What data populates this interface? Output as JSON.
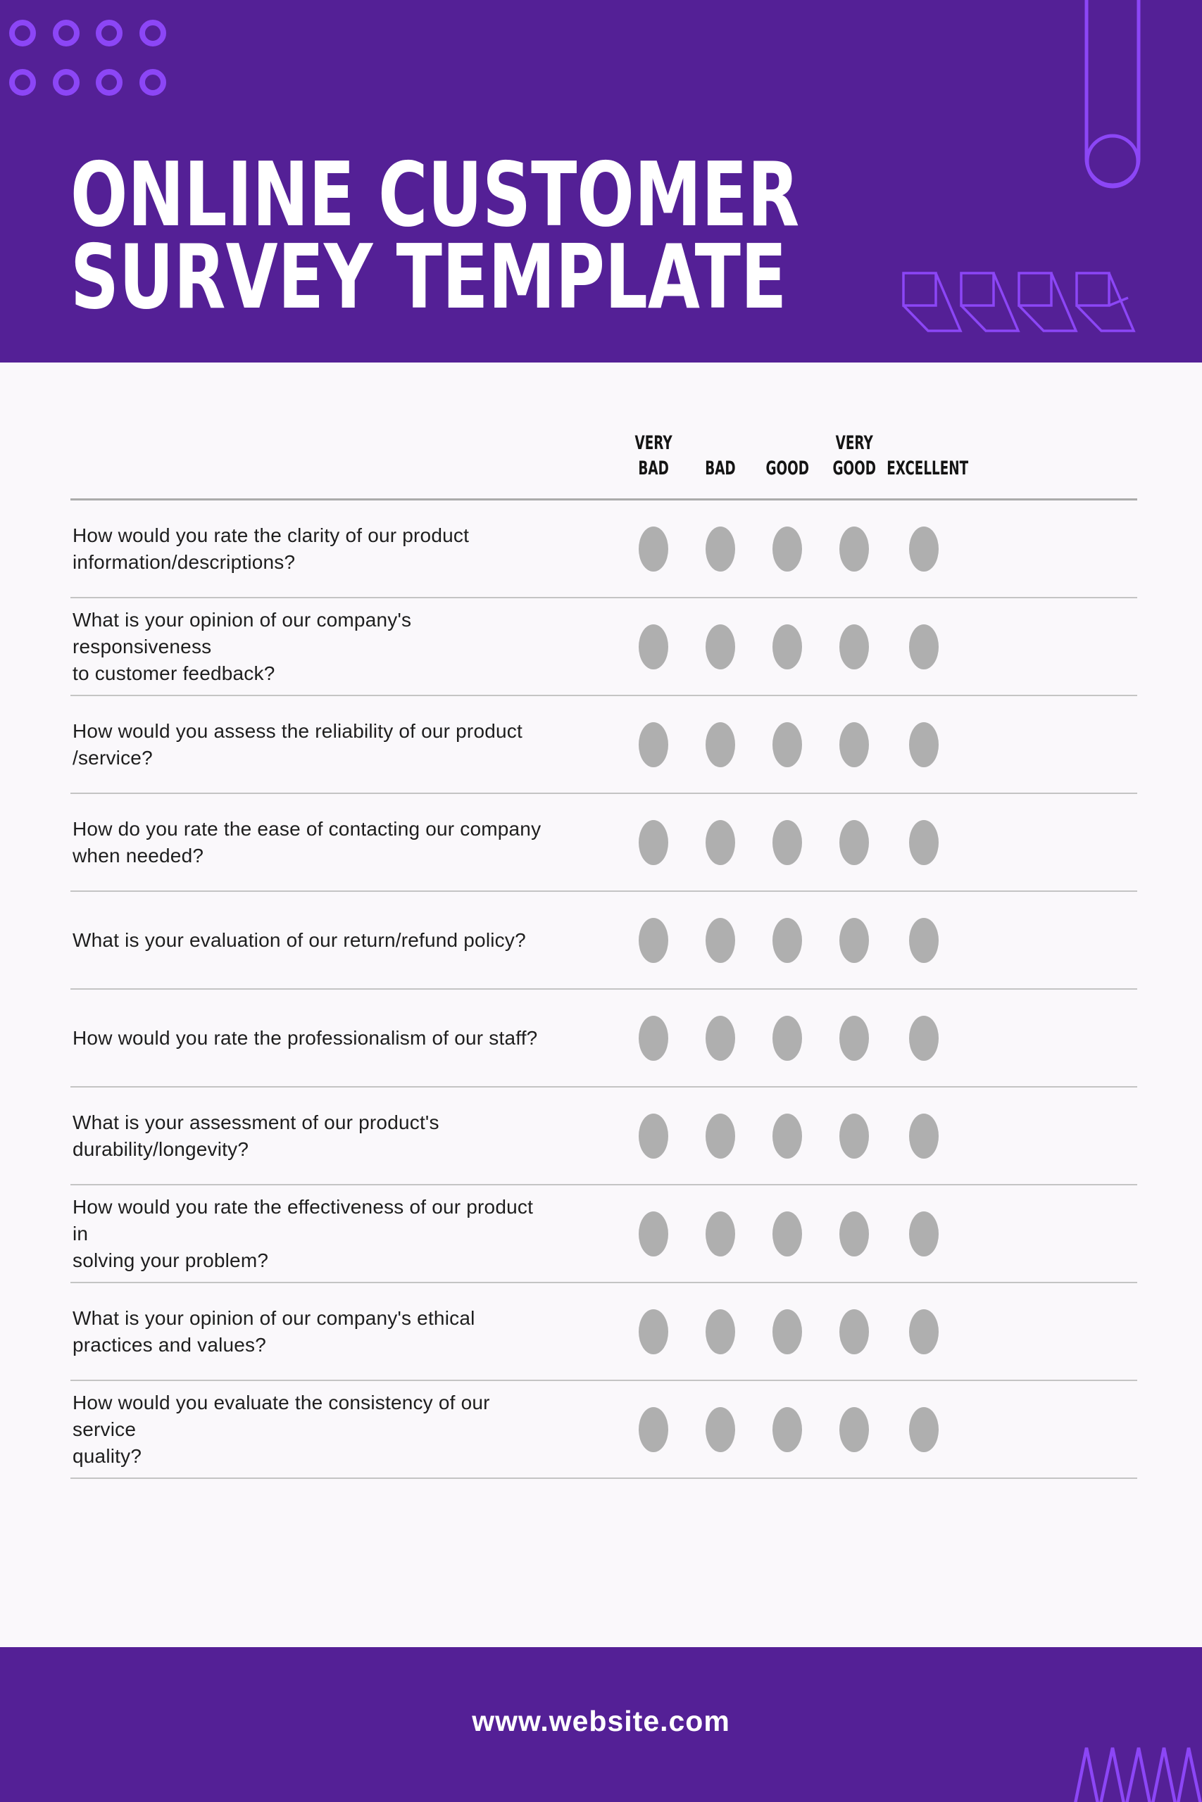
{
  "header": {
    "title": "ONLINE CUSTOMER\nSURVEY TEMPLATE",
    "background": "#542096",
    "accent": "#8C46F6",
    "decorations": [
      "circle-grid",
      "hanging-capsule",
      "isometric-cubes"
    ]
  },
  "survey": {
    "scale": [
      "VERY\nBAD",
      "BAD",
      "GOOD",
      "VERY\nGOOD",
      "EXCELLENT"
    ],
    "questions": [
      "How would you rate the clarity of our product\ninformation/descriptions?",
      "What is your opinion of our company's responsiveness\nto customer feedback?",
      "How would you assess the reliability of our product\n/service?",
      "How do you rate the ease of contacting our company\nwhen needed?",
      "What is your evaluation of our return/refund policy?",
      "How would you rate the professionalism of our staff?",
      "What is your assessment of our product's\ndurability/longevity?",
      "How would you rate the effectiveness of our product in\nsolving your problem?",
      "What is your opinion of our company's ethical\npractices and values?",
      "How would you evaluate the consistency of our service\nquality?"
    ],
    "radio_state": "unselected"
  },
  "footer": {
    "url": "www.website.com",
    "background": "#542096",
    "decorations": [
      "zigzag"
    ]
  },
  "colors": {
    "purple": "#542096",
    "accent": "#8C46F6",
    "page_bg": "#FAF8FB",
    "text": "#1E1E1E",
    "radio": "#AFAFAF",
    "line": "#C4C4C4",
    "line_strong": "#ABABAB",
    "white": "#FFFFFF"
  }
}
